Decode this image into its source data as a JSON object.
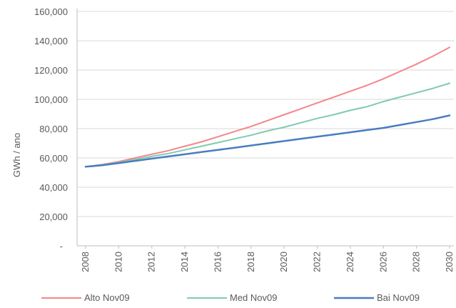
{
  "chart_data": {
    "type": "line",
    "title": "",
    "xlabel": "",
    "ylabel": "GWh / ano",
    "x": [
      2008,
      2009,
      2010,
      2011,
      2012,
      2013,
      2014,
      2015,
      2016,
      2017,
      2018,
      2019,
      2020,
      2021,
      2022,
      2023,
      2024,
      2025,
      2026,
      2027,
      2028,
      2029,
      2030
    ],
    "x_tick_labels": [
      "2008",
      "2010",
      "2012",
      "2014",
      "2016",
      "2018",
      "2020",
      "2022",
      "2024",
      "2026",
      "2028",
      "2030"
    ],
    "y_tick_labels": [
      "-",
      "20,000",
      "40,000",
      "60,000",
      "80,000",
      "100,000",
      "120,000",
      "140,000",
      "160,000"
    ],
    "ylim": [
      0,
      160000
    ],
    "grid": true,
    "legend_position": "bottom",
    "series": [
      {
        "name": "Alto Nov09",
        "color": "#f4868c",
        "values": [
          54000,
          55500,
          57500,
          60000,
          62500,
          65000,
          68000,
          71000,
          74500,
          78000,
          81500,
          85500,
          89500,
          93500,
          97500,
          101500,
          105500,
          109500,
          114000,
          119000,
          124000,
          129500,
          135500
        ]
      },
      {
        "name": "Med Nov09",
        "color": "#7fcbb1",
        "values": [
          54000,
          55300,
          57000,
          59000,
          61000,
          63000,
          65500,
          68000,
          70500,
          73000,
          75500,
          78500,
          81000,
          84000,
          87000,
          89500,
          92500,
          95000,
          98500,
          101500,
          104500,
          107500,
          111000
        ]
      },
      {
        "name": "Bai Nov09",
        "color": "#4a7dbf",
        "values": [
          54000,
          55000,
          56500,
          58000,
          59500,
          61000,
          62500,
          64000,
          65500,
          67000,
          68500,
          70000,
          71500,
          73000,
          74500,
          76000,
          77500,
          79000,
          80500,
          82500,
          84500,
          86500,
          89000
        ]
      }
    ]
  }
}
